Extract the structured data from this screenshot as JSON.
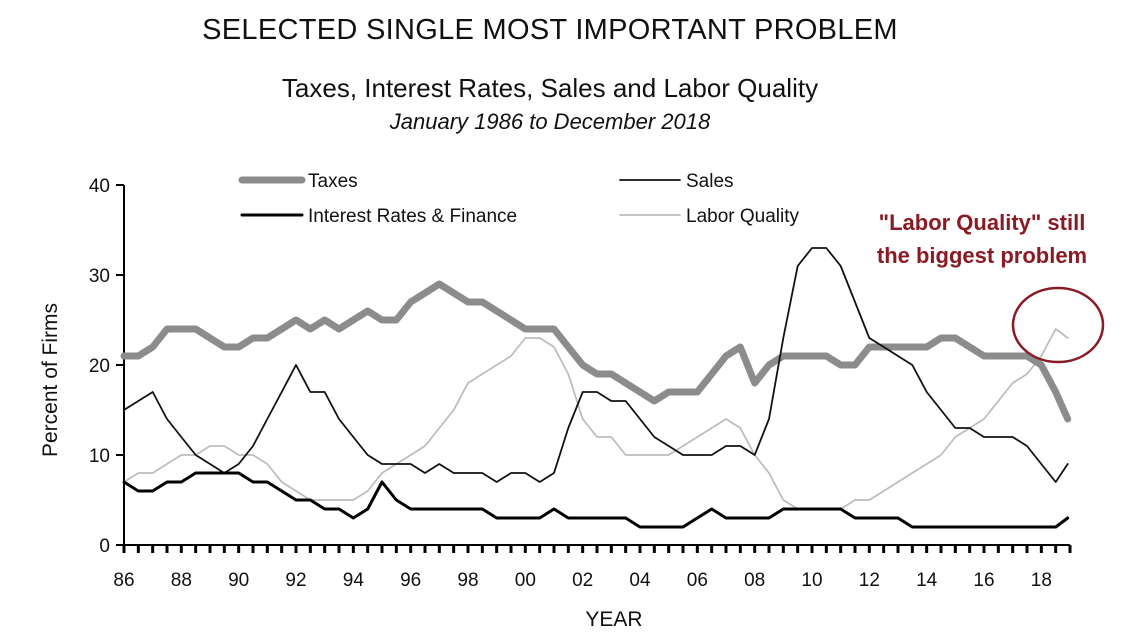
{
  "chart_data": {
    "type": "line",
    "title": "SELECTED SINGLE MOST IMPORTANT PROBLEM",
    "subtitle": "Taxes, Interest Rates, Sales and Labor Quality",
    "date_range": "January 1986 to December 2018",
    "xlabel": "YEAR",
    "ylabel": "Percent of Firms",
    "ylim": [
      0,
      40
    ],
    "yticks": [
      "0",
      "10",
      "20",
      "30",
      "40"
    ],
    "xlim": [
      1986,
      2019
    ],
    "xticks": [
      "86",
      "88",
      "90",
      "92",
      "94",
      "96",
      "98",
      "00",
      "02",
      "04",
      "06",
      "08",
      "10",
      "12",
      "14",
      "16",
      "18"
    ],
    "legend_position": "top-center",
    "annotation": {
      "line1": "\"Labor Quality\" still",
      "line2": "the biggest problem"
    },
    "series": [
      {
        "name": "Taxes",
        "color": "#8c8c8c",
        "x": [
          1986.0,
          1986.5,
          1987.0,
          1987.5,
          1988.0,
          1988.5,
          1989.0,
          1989.5,
          1990.0,
          1990.5,
          1991.0,
          1991.5,
          1992.0,
          1992.5,
          1993.0,
          1993.5,
          1994.0,
          1994.5,
          1995.0,
          1995.5,
          1996.0,
          1996.5,
          1997.0,
          1997.5,
          1998.0,
          1998.5,
          1999.0,
          1999.5,
          2000.0,
          2000.5,
          2001.0,
          2001.5,
          2002.0,
          2002.5,
          2003.0,
          2003.5,
          2004.0,
          2004.5,
          2005.0,
          2005.5,
          2006.0,
          2006.5,
          2007.0,
          2007.5,
          2008.0,
          2008.5,
          2009.0,
          2009.5,
          2010.0,
          2010.5,
          2011.0,
          2011.5,
          2012.0,
          2012.5,
          2013.0,
          2013.5,
          2014.0,
          2014.5,
          2015.0,
          2015.5,
          2016.0,
          2016.5,
          2017.0,
          2017.5,
          2018.0,
          2018.5,
          2018.92
        ],
        "y": [
          21,
          21,
          22,
          24,
          24,
          24,
          23,
          22,
          22,
          23,
          23,
          24,
          25,
          24,
          25,
          24,
          25,
          26,
          25,
          25,
          27,
          28,
          29,
          28,
          27,
          27,
          26,
          25,
          24,
          24,
          24,
          22,
          20,
          19,
          19,
          18,
          17,
          16,
          17,
          17,
          17,
          19,
          21,
          22,
          18,
          20,
          21,
          21,
          21,
          21,
          20,
          20,
          22,
          22,
          22,
          22,
          22,
          23,
          23,
          22,
          21,
          21,
          21,
          21,
          20,
          17,
          14
        ]
      },
      {
        "name": "Sales",
        "color": "#111111",
        "x": [
          1986.0,
          1986.5,
          1987.0,
          1987.5,
          1988.0,
          1988.5,
          1989.0,
          1989.5,
          1990.0,
          1990.5,
          1991.0,
          1991.5,
          1992.0,
          1992.5,
          1993.0,
          1993.5,
          1994.0,
          1994.5,
          1995.0,
          1995.5,
          1996.0,
          1996.5,
          1997.0,
          1997.5,
          1998.0,
          1998.5,
          1999.0,
          1999.5,
          2000.0,
          2000.5,
          2001.0,
          2001.5,
          2002.0,
          2002.5,
          2003.0,
          2003.5,
          2004.0,
          2004.5,
          2005.0,
          2005.5,
          2006.0,
          2006.5,
          2007.0,
          2007.5,
          2008.0,
          2008.5,
          2009.0,
          2009.5,
          2010.0,
          2010.5,
          2011.0,
          2011.5,
          2012.0,
          2012.5,
          2013.0,
          2013.5,
          2014.0,
          2014.5,
          2015.0,
          2015.5,
          2016.0,
          2016.5,
          2017.0,
          2017.5,
          2018.0,
          2018.5,
          2018.92
        ],
        "y": [
          15,
          16,
          17,
          14,
          12,
          10,
          9,
          8,
          9,
          11,
          14,
          17,
          20,
          17,
          17,
          14,
          12,
          10,
          9,
          9,
          9,
          8,
          9,
          8,
          8,
          8,
          7,
          8,
          8,
          7,
          8,
          13,
          17,
          17,
          16,
          16,
          14,
          12,
          11,
          10,
          10,
          10,
          11,
          11,
          10,
          14,
          23,
          31,
          33,
          33,
          31,
          27,
          23,
          22,
          21,
          20,
          17,
          15,
          13,
          13,
          12,
          12,
          12,
          11,
          9,
          7,
          9
        ]
      },
      {
        "name": "Interest Rates & Finance",
        "color": "#000000",
        "x": [
          1986.0,
          1986.5,
          1987.0,
          1987.5,
          1988.0,
          1988.5,
          1989.0,
          1989.5,
          1990.0,
          1990.5,
          1991.0,
          1991.5,
          1992.0,
          1992.5,
          1993.0,
          1993.5,
          1994.0,
          1994.5,
          1995.0,
          1995.5,
          1996.0,
          1996.5,
          1997.0,
          1997.5,
          1998.0,
          1998.5,
          1999.0,
          1999.5,
          2000.0,
          2000.5,
          2001.0,
          2001.5,
          2002.0,
          2002.5,
          2003.0,
          2003.5,
          2004.0,
          2004.5,
          2005.0,
          2005.5,
          2006.0,
          2006.5,
          2007.0,
          2007.5,
          2008.0,
          2008.5,
          2009.0,
          2009.5,
          2010.0,
          2010.5,
          2011.0,
          2011.5,
          2012.0,
          2012.5,
          2013.0,
          2013.5,
          2014.0,
          2014.5,
          2015.0,
          2015.5,
          2016.0,
          2016.5,
          2017.0,
          2017.5,
          2018.0,
          2018.5,
          2018.92
        ],
        "y": [
          7,
          6,
          6,
          7,
          7,
          8,
          8,
          8,
          8,
          7,
          7,
          6,
          5,
          5,
          4,
          4,
          3,
          4,
          7,
          5,
          4,
          4,
          4,
          4,
          4,
          4,
          3,
          3,
          3,
          3,
          4,
          3,
          3,
          3,
          3,
          3,
          2,
          2,
          2,
          2,
          3,
          4,
          3,
          3,
          3,
          3,
          4,
          4,
          4,
          4,
          4,
          3,
          3,
          3,
          3,
          2,
          2,
          2,
          2,
          2,
          2,
          2,
          2,
          2,
          2,
          2,
          3
        ]
      },
      {
        "name": "Labor Quality",
        "color": "#bdbdbd",
        "x": [
          1986.0,
          1986.5,
          1987.0,
          1987.5,
          1988.0,
          1988.5,
          1989.0,
          1989.5,
          1990.0,
          1990.5,
          1991.0,
          1991.5,
          1992.0,
          1992.5,
          1993.0,
          1993.5,
          1994.0,
          1994.5,
          1995.0,
          1995.5,
          1996.0,
          1996.5,
          1997.0,
          1997.5,
          1998.0,
          1998.5,
          1999.0,
          1999.5,
          2000.0,
          2000.5,
          2001.0,
          2001.5,
          2002.0,
          2002.5,
          2003.0,
          2003.5,
          2004.0,
          2004.5,
          2005.0,
          2005.5,
          2006.0,
          2006.5,
          2007.0,
          2007.5,
          2008.0,
          2008.5,
          2009.0,
          2009.5,
          2010.0,
          2010.5,
          2011.0,
          2011.5,
          2012.0,
          2012.5,
          2013.0,
          2013.5,
          2014.0,
          2014.5,
          2015.0,
          2015.5,
          2016.0,
          2016.5,
          2017.0,
          2017.5,
          2018.0,
          2018.5,
          2018.92
        ],
        "y": [
          7,
          8,
          8,
          9,
          10,
          10,
          11,
          11,
          10,
          10,
          9,
          7,
          6,
          5,
          5,
          5,
          5,
          6,
          8,
          9,
          10,
          11,
          13,
          15,
          18,
          19,
          20,
          21,
          23,
          23,
          22,
          19,
          14,
          12,
          12,
          10,
          10,
          10,
          10,
          11,
          12,
          13,
          14,
          13,
          10,
          8,
          5,
          4,
          4,
          4,
          4,
          5,
          5,
          6,
          7,
          8,
          9,
          10,
          12,
          13,
          14,
          16,
          18,
          19,
          21,
          24,
          23
        ]
      }
    ]
  }
}
